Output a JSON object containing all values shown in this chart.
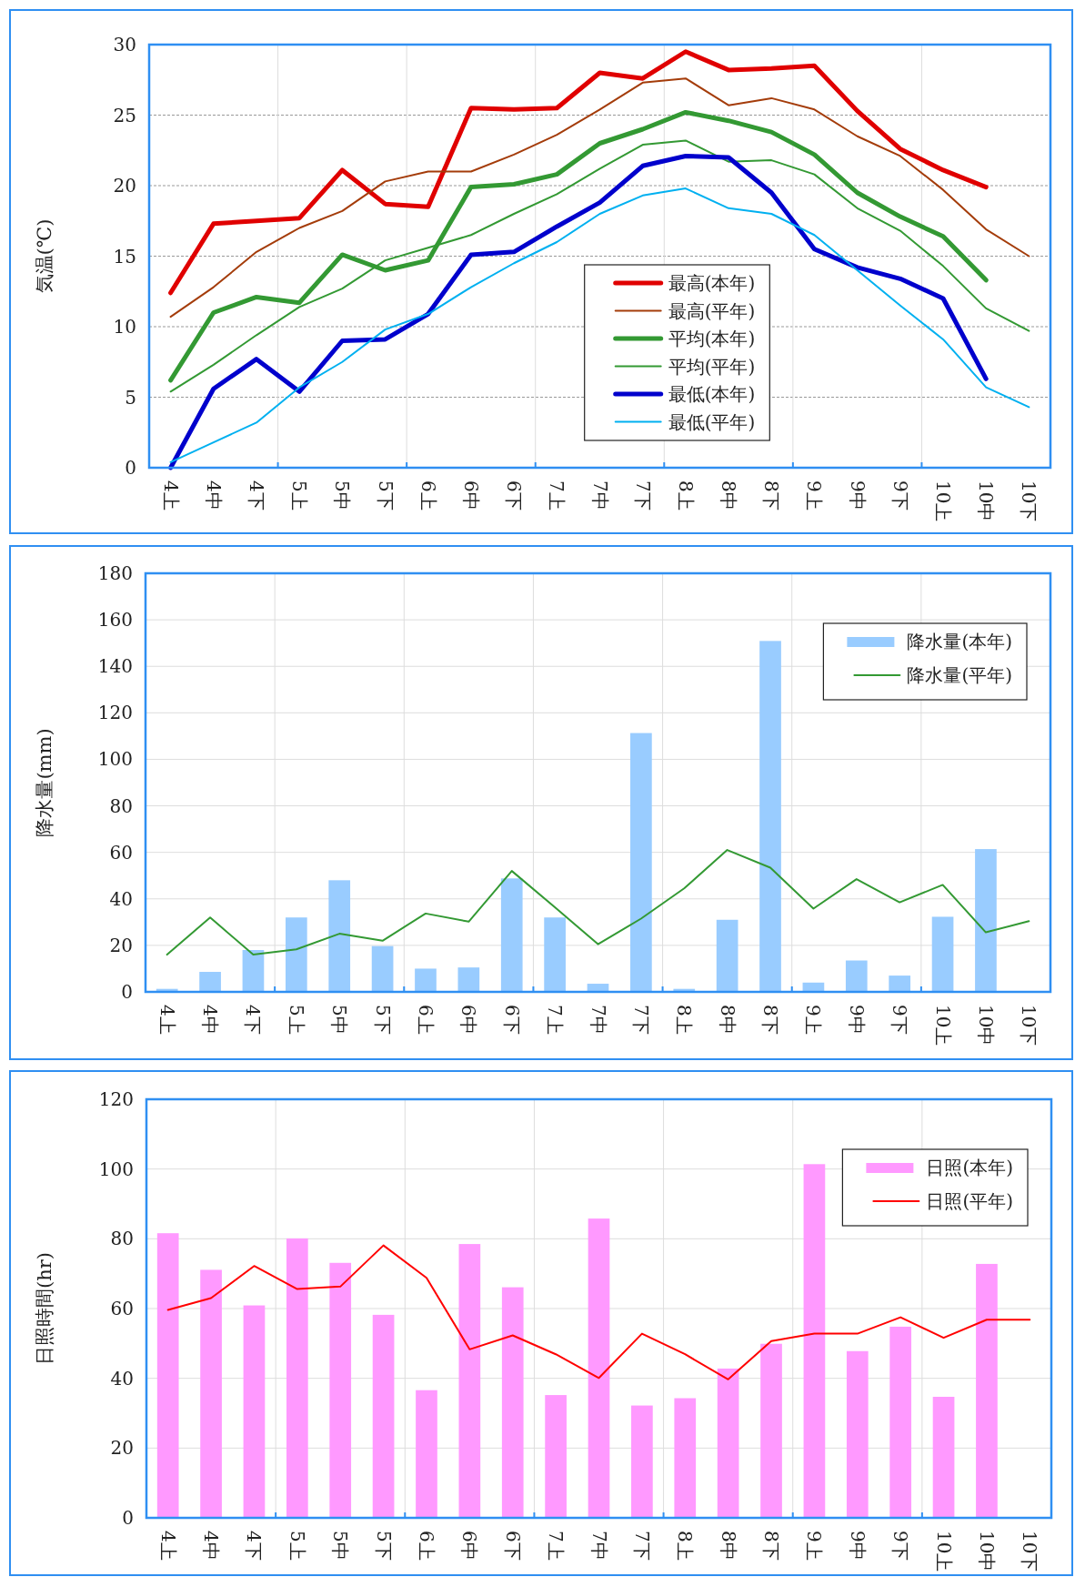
{
  "chart_data": [
    {
      "type": "line",
      "ylabel": "気温(℃)",
      "categories": [
        "4上",
        "4中",
        "4下",
        "5上",
        "5中",
        "5下",
        "6上",
        "6中",
        "6下",
        "7上",
        "7中",
        "7下",
        "8上",
        "8中",
        "8下",
        "9上",
        "9中",
        "9下",
        "10上",
        "10中",
        "10下"
      ],
      "ylim": [
        0,
        30
      ],
      "yticks": [
        0,
        5,
        10,
        15,
        20,
        25,
        30
      ],
      "grid": true,
      "legend": "bottom",
      "series": [
        {
          "name": "最高(本年)",
          "color": "#e00000",
          "values": [
            12.4,
            17.3,
            17.5,
            17.7,
            21.1,
            18.7,
            18.5,
            25.5,
            25.4,
            25.5,
            28.0,
            27.6,
            29.5,
            28.2,
            28.3,
            28.5,
            25.3,
            22.6,
            21.1,
            19.9,
            null
          ]
        },
        {
          "name": "最高(平年)",
          "color": "#a43c0a",
          "values": [
            10.7,
            12.8,
            15.3,
            17.0,
            18.2,
            20.3,
            21.0,
            21.0,
            22.2,
            23.6,
            25.4,
            27.3,
            27.6,
            25.7,
            26.2,
            25.4,
            23.5,
            22.1,
            19.7,
            16.9,
            15.0
          ]
        },
        {
          "name": "平均(本年)",
          "color": "#339933",
          "values": [
            6.2,
            11.0,
            12.1,
            11.7,
            15.1,
            14.0,
            14.7,
            19.9,
            20.1,
            20.8,
            23.0,
            24.0,
            25.2,
            24.6,
            23.8,
            22.2,
            19.5,
            17.8,
            16.4,
            13.3,
            null
          ]
        },
        {
          "name": "平均(平年)",
          "color": "#339933",
          "values": [
            5.4,
            7.3,
            9.4,
            11.4,
            12.7,
            14.7,
            15.6,
            16.5,
            18.0,
            19.4,
            21.2,
            22.9,
            23.2,
            21.7,
            21.8,
            20.8,
            18.4,
            16.8,
            14.3,
            11.3,
            9.7
          ]
        },
        {
          "name": "最低(本年)",
          "color": "#0000cc",
          "values": [
            0,
            5.6,
            7.7,
            5.4,
            9.0,
            9.1,
            10.9,
            15.1,
            15.3,
            17.1,
            18.8,
            21.4,
            22.1,
            22.0,
            19.5,
            15.5,
            14.2,
            13.4,
            12.0,
            6.3,
            null
          ]
        },
        {
          "name": "最低(平年)",
          "color": "#00b0f0",
          "values": [
            0.4,
            1.8,
            3.2,
            5.7,
            7.5,
            9.8,
            10.9,
            12.8,
            14.5,
            16.0,
            18.0,
            19.3,
            19.8,
            18.4,
            18.0,
            16.5,
            14.0,
            11.5,
            9.1,
            5.7,
            4.3
          ]
        }
      ]
    },
    {
      "type": "bar",
      "ylabel": "降水量(mm)",
      "categories": [
        "4上",
        "4中",
        "4下",
        "5上",
        "5中",
        "5下",
        "6上",
        "6中",
        "6下",
        "7上",
        "7中",
        "7下",
        "8上",
        "8中",
        "8下",
        "9上",
        "9中",
        "9下",
        "10上",
        "10中",
        "10下"
      ],
      "ylim": [
        0,
        180
      ],
      "yticks": [
        0,
        20,
        40,
        60,
        80,
        100,
        120,
        140,
        160,
        180
      ],
      "grid": true,
      "legend": "top right",
      "series": [
        {
          "name": "降水量(本年)",
          "color": "#99ccff",
          "values": [
            1.3,
            8.6,
            18,
            32,
            48,
            19.7,
            10,
            10.5,
            48.8,
            32,
            3.5,
            111.3,
            1.3,
            31,
            150.9,
            4,
            13.5,
            7,
            32.3,
            61.4,
            null
          ]
        },
        {
          "name": "降水量(平年)",
          "type": "line",
          "color": "#339933",
          "values": [
            16,
            32,
            16,
            18.3,
            25,
            22,
            33.7,
            30.2,
            52,
            36.4,
            20.5,
            31.5,
            44.5,
            61,
            53.4,
            35.8,
            48.5,
            38.5,
            46,
            25.6,
            30.4
          ]
        }
      ]
    },
    {
      "type": "bar",
      "ylabel": "日照時間(hr)",
      "categories": [
        "4上",
        "4中",
        "4下",
        "5上",
        "5中",
        "5下",
        "6上",
        "6中",
        "6下",
        "7上",
        "7中",
        "7下",
        "8上",
        "8中",
        "8下",
        "9上",
        "9中",
        "9下",
        "10上",
        "10中",
        "10下"
      ],
      "ylim": [
        0,
        120
      ],
      "yticks": [
        0,
        20,
        40,
        60,
        80,
        100,
        120
      ],
      "grid": true,
      "legend": "top right",
      "series": [
        {
          "name": "日照(本年)",
          "color": "#ff99ff",
          "values": [
            81.6,
            71.1,
            60.9,
            80.1,
            73.1,
            58.2,
            36.6,
            78.5,
            66.1,
            35.2,
            85.8,
            32.2,
            34.3,
            42.8,
            49.9,
            101.4,
            47.8,
            54.8,
            34.7,
            72.8,
            null
          ]
        },
        {
          "name": "日照(平年)",
          "type": "line",
          "color": "#ff0000",
          "values": [
            59.6,
            63.0,
            72.2,
            65.6,
            66.3,
            78.1,
            68.8,
            48.3,
            52.3,
            46.9,
            40.1,
            52.8,
            46.9,
            39.7,
            50.7,
            52.8,
            52.8,
            57.5,
            51.6,
            56.8,
            56.8
          ]
        }
      ]
    }
  ]
}
